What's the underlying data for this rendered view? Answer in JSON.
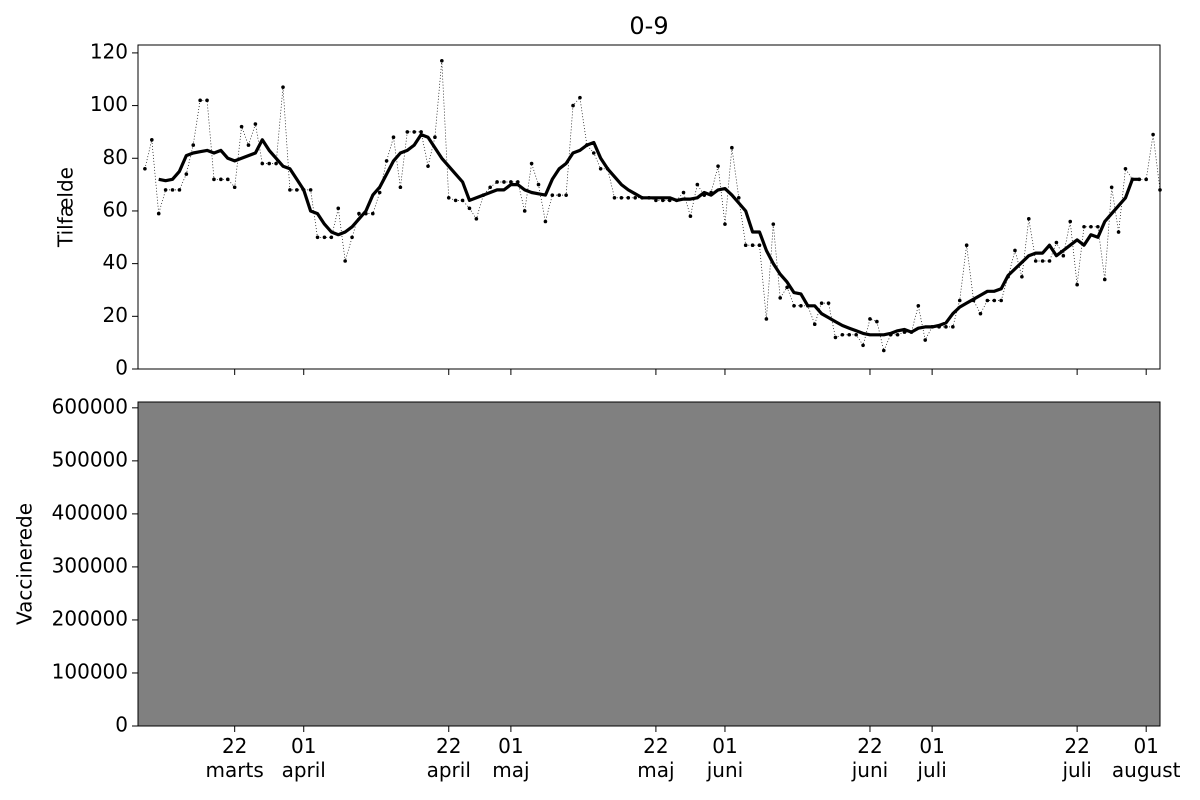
{
  "chart_data": [
    {
      "type": "line",
      "title": "0-9",
      "ylabel": "Tilfælde",
      "x": [
        "03-09",
        "03-10",
        "03-11",
        "03-12",
        "03-13",
        "03-14",
        "03-15",
        "03-16",
        "03-17",
        "03-18",
        "03-19",
        "03-20",
        "03-21",
        "03-22",
        "03-23",
        "03-24",
        "03-25",
        "03-26",
        "03-27",
        "03-28",
        "03-29",
        "03-30",
        "03-31",
        "04-01",
        "04-02",
        "04-03",
        "04-04",
        "04-05",
        "04-06",
        "04-07",
        "04-08",
        "04-09",
        "04-10",
        "04-11",
        "04-12",
        "04-13",
        "04-14",
        "04-15",
        "04-16",
        "04-17",
        "04-18",
        "04-19",
        "04-20",
        "04-21",
        "04-22",
        "04-23",
        "04-24",
        "04-25",
        "04-26",
        "04-27",
        "04-28",
        "04-29",
        "04-30",
        "05-01",
        "05-02",
        "05-03",
        "05-04",
        "05-05",
        "05-06",
        "05-07",
        "05-08",
        "05-09",
        "05-10",
        "05-11",
        "05-12",
        "05-13",
        "05-14",
        "05-15",
        "05-16",
        "05-17",
        "05-18",
        "05-19",
        "05-20",
        "05-21",
        "05-22",
        "05-23",
        "05-24",
        "05-25",
        "05-26",
        "05-27",
        "05-28",
        "05-29",
        "05-30",
        "05-31",
        "06-01",
        "06-02",
        "06-03",
        "06-04",
        "06-05",
        "06-06",
        "06-07",
        "06-08",
        "06-09",
        "06-10",
        "06-11",
        "06-12",
        "06-13",
        "06-14",
        "06-15",
        "06-16",
        "06-17",
        "06-18",
        "06-19",
        "06-20",
        "06-21",
        "06-22",
        "06-23",
        "06-24",
        "06-25",
        "06-26",
        "06-27",
        "06-28",
        "06-29",
        "06-30",
        "07-01",
        "07-02",
        "07-03",
        "07-04",
        "07-05",
        "07-06",
        "07-07",
        "07-08",
        "07-09",
        "07-10",
        "07-11",
        "07-12",
        "07-13",
        "07-14",
        "07-15",
        "07-16",
        "07-17",
        "07-18",
        "07-19",
        "07-20",
        "07-21",
        "07-22",
        "07-23",
        "07-24",
        "07-25",
        "07-26",
        "07-27",
        "07-28",
        "07-29",
        "07-30",
        "07-31",
        "08-01",
        "08-02",
        "08-03"
      ],
      "series": [
        {
          "color": "#000000",
          "linestyle": "dotted",
          "marker": true,
          "values": [
            76,
            87,
            59,
            68,
            68,
            68,
            74,
            85,
            102,
            102,
            72,
            72,
            72,
            69,
            92,
            85,
            93,
            78,
            78,
            78,
            107,
            68,
            68,
            68,
            68,
            50,
            50,
            50,
            61,
            41,
            50,
            59,
            59,
            59,
            67,
            79,
            88,
            69,
            90,
            90,
            90,
            77,
            88,
            117,
            65,
            64,
            64,
            61,
            57,
            66,
            69,
            71,
            71,
            71,
            71,
            60,
            78,
            70,
            56,
            66,
            66,
            66,
            100,
            103,
            85,
            82,
            76,
            76,
            65,
            65,
            65,
            65,
            65,
            65,
            64,
            64,
            64,
            64,
            67,
            58,
            70,
            66,
            67,
            77,
            55,
            84,
            65,
            47,
            47,
            47,
            19,
            55,
            27,
            31,
            24,
            24,
            24,
            17,
            25,
            25,
            12,
            13,
            13,
            13,
            9,
            19,
            18,
            7,
            13,
            13,
            14,
            14,
            24,
            11,
            16,
            16,
            16,
            16,
            26,
            47,
            26,
            21,
            26,
            26,
            26,
            35,
            45,
            35,
            57,
            41,
            41,
            41,
            48,
            43,
            56,
            32,
            54,
            54,
            54,
            34,
            69,
            52,
            76,
            72,
            72,
            72,
            89,
            68
          ]
        },
        {
          "color": "#000000",
          "linestyle": "solid",
          "marker": false,
          "values": [
            null,
            null,
            72,
            71.5,
            72,
            75,
            81,
            82,
            82.5,
            83,
            82,
            83,
            80,
            79,
            80,
            81,
            82,
            87,
            83,
            80,
            77,
            76,
            72,
            68,
            60,
            59,
            55,
            52,
            51,
            52,
            54,
            57,
            60,
            66,
            69,
            74,
            79,
            82,
            83,
            85,
            89,
            88,
            84,
            80,
            77,
            74,
            71,
            64,
            65,
            66,
            67,
            68,
            68,
            70,
            70,
            68,
            67,
            66.5,
            66,
            72,
            76,
            78,
            82,
            83,
            85,
            86,
            80,
            76,
            73,
            70,
            68,
            66.5,
            65,
            65,
            65,
            65,
            65,
            64,
            64.5,
            64.5,
            65,
            67,
            66,
            68,
            68.5,
            66,
            63,
            60,
            52,
            52,
            45,
            40,
            36,
            33,
            29,
            28.5,
            24,
            24,
            21,
            19.5,
            18,
            16.5,
            15.5,
            14.5,
            13.5,
            13,
            13,
            13,
            13.5,
            14.5,
            15,
            14,
            15.5,
            16,
            16,
            16.5,
            17.5,
            21,
            23.5,
            25,
            26.5,
            28,
            29.5,
            29.5,
            30.5,
            35.5,
            38,
            40.5,
            43,
            44,
            44,
            47,
            43,
            45,
            47,
            49,
            47,
            51,
            50,
            56,
            59,
            62,
            65,
            72,
            72,
            null,
            null,
            null
          ]
        }
      ],
      "xlim": [
        "03-08",
        "08-03"
      ],
      "ylim": [
        0,
        123
      ],
      "yticks": [
        0,
        20,
        40,
        60,
        80,
        100,
        120
      ],
      "facecolor": "#ffffff"
    },
    {
      "type": "line",
      "ylabel": "Vaccinerede",
      "xlim": [
        "03-08",
        "08-03"
      ],
      "ylim": [
        0,
        611000
      ],
      "yticks": [
        0,
        100000,
        200000,
        300000,
        400000,
        500000,
        600000
      ],
      "xticks": [
        {
          "value": "03-22",
          "label": "22\nmarts"
        },
        {
          "value": "04-01",
          "label": "01\napril"
        },
        {
          "value": "04-22",
          "label": "22\napril"
        },
        {
          "value": "05-01",
          "label": "01\nmaj"
        },
        {
          "value": "05-22",
          "label": "22\nmaj"
        },
        {
          "value": "06-01",
          "label": "01\njuni"
        },
        {
          "value": "06-22",
          "label": "22\njuni"
        },
        {
          "value": "07-01",
          "label": "01\njuli"
        },
        {
          "value": "07-22",
          "label": "22\njuli"
        },
        {
          "value": "08-01",
          "label": "01\naugust"
        }
      ],
      "facecolor": "#808080"
    }
  ]
}
